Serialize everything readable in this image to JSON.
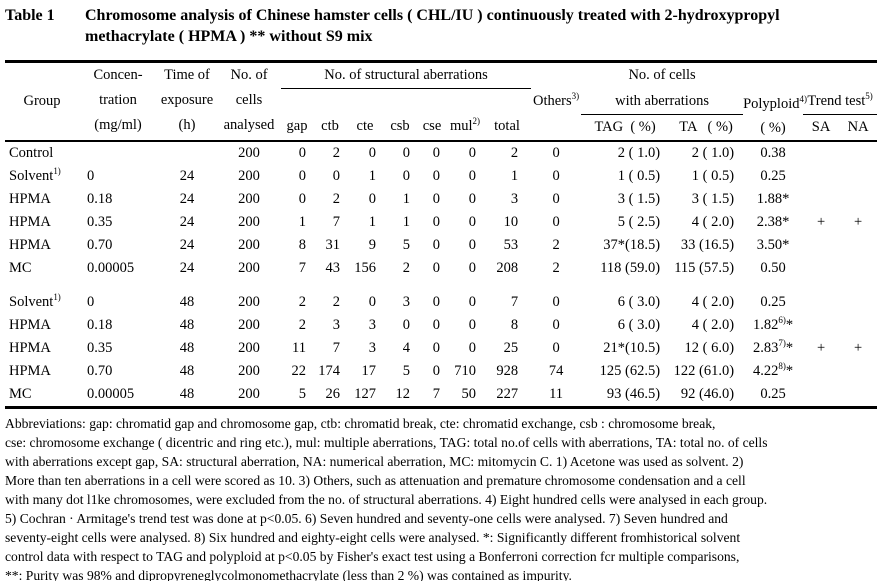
{
  "title": {
    "label": "Table 1",
    "text": "Chromosome analysis of Chinese hamster cells ( CHL/IU ) continuously treated with 2-hydroxypropyl\nmethacrylate ( HPMA ) ** without S9 mix"
  },
  "table": {
    "header": {
      "group": "Group",
      "concentration": "Concen-\ntration\n(mg/ml)",
      "time": "Time of\nexposure\n(h)",
      "cells": "No. of\ncells\nanalysed",
      "structural": "No. of structural aberrations",
      "gap": "gap",
      "ctb": "ctb",
      "cte": "cte",
      "csb": "csb",
      "cse": "cse",
      "mul": "mul|2)",
      "total": "total",
      "others": "Others|3)",
      "cells_with_aberrations_1": "No. of cells",
      "cells_with_aberrations_2": "with aberrations",
      "tag": "TAG  ( %)",
      "ta": "TA   ( %)",
      "polyploid": "Polyploid|4)|\n( %)",
      "trend": "Trend test|5)",
      "sa": "SA",
      "na": "NA"
    },
    "blocks": [
      {
        "rows": [
          {
            "group": "Control",
            "conc": "",
            "time": "",
            "cells": "200",
            "gap": "0",
            "ctb": "2",
            "cte": "0",
            "csb": "0",
            "cse": "0",
            "mul": "0",
            "total": "2",
            "others": "0",
            "tag": "2 ( 1.0)",
            "ta": "2 ( 1.0)",
            "poly": "0.38",
            "sa": "",
            "na": ""
          },
          {
            "group": "Solvent|1)",
            "conc": "0",
            "time": "24",
            "cells": "200",
            "gap": "0",
            "ctb": "0",
            "cte": "1",
            "csb": "0",
            "cse": "0",
            "mul": "0",
            "total": "1",
            "others": "0",
            "tag": "1 ( 0.5)",
            "ta": "1 ( 0.5)",
            "poly": "0.25",
            "sa": "",
            "na": ""
          },
          {
            "group": "HPMA",
            "conc": "0.18",
            "time": "24",
            "cells": "200",
            "gap": "0",
            "ctb": "2",
            "cte": "0",
            "csb": "1",
            "cse": "0",
            "mul": "0",
            "total": "3",
            "others": "0",
            "tag": "3 ( 1.5)",
            "ta": "3 ( 1.5)",
            "poly": "1.88*",
            "sa": "",
            "na": ""
          },
          {
            "group": "HPMA",
            "conc": "0.35",
            "time": "24",
            "cells": "200",
            "gap": "1",
            "ctb": "7",
            "cte": "1",
            "csb": "1",
            "cse": "0",
            "mul": "0",
            "total": "10",
            "others": "0",
            "tag": "5 ( 2.5)",
            "ta": "4 ( 2.0)",
            "poly": "2.38*",
            "sa": "+",
            "na": "+"
          },
          {
            "group": "HPMA",
            "conc": "0.70",
            "time": "24",
            "cells": "200",
            "gap": "8",
            "ctb": "31",
            "cte": "9",
            "csb": "5",
            "cse": "0",
            "mul": "0",
            "total": "53",
            "others": "2",
            "tag": "37*(18.5)",
            "ta": "33 (16.5)",
            "poly": "3.50*",
            "sa": "",
            "na": ""
          },
          {
            "group": "MC",
            "conc": "0.00005",
            "time": "24",
            "cells": "200",
            "gap": "7",
            "ctb": "43",
            "cte": "156",
            "csb": "2",
            "cse": "0",
            "mul": "0",
            "total": "208",
            "others": "2",
            "tag": "118 (59.0)",
            "ta": "115 (57.5)",
            "poly": "0.50",
            "sa": "",
            "na": ""
          }
        ]
      },
      {
        "rows": [
          {
            "group": "Solvent|1)",
            "conc": "0",
            "time": "48",
            "cells": "200",
            "gap": "2",
            "ctb": "2",
            "cte": "0",
            "csb": "3",
            "cse": "0",
            "mul": "0",
            "total": "7",
            "others": "0",
            "tag": "6 ( 3.0)",
            "ta": "4 ( 2.0)",
            "poly": "0.25",
            "sa": "",
            "na": ""
          },
          {
            "group": "HPMA",
            "conc": "0.18",
            "time": "48",
            "cells": "200",
            "gap": "2",
            "ctb": "3",
            "cte": "3",
            "csb": "0",
            "cse": "0",
            "mul": "0",
            "total": "8",
            "others": "0",
            "tag": "6 ( 3.0)",
            "ta": "4 ( 2.0)",
            "poly": "1.82|6)|*",
            "sa": "",
            "na": ""
          },
          {
            "group": "HPMA",
            "conc": "0.35",
            "time": "48",
            "cells": "200",
            "gap": "11",
            "ctb": "7",
            "cte": "3",
            "csb": "4",
            "cse": "0",
            "mul": "0",
            "total": "25",
            "others": "0",
            "tag": "21*(10.5)",
            "ta": "12 ( 6.0)",
            "poly": "2.83|7)|*",
            "sa": "+",
            "na": "+"
          },
          {
            "group": "HPMA",
            "conc": "0.70",
            "time": "48",
            "cells": "200",
            "gap": "22",
            "ctb": "174",
            "cte": "17",
            "csb": "5",
            "cse": "0",
            "mul": "710",
            "total": "928",
            "others": "74",
            "tag": "125 (62.5)",
            "ta": "122 (61.0)",
            "poly": "4.22|8)|*",
            "sa": "",
            "na": ""
          },
          {
            "group": "MC",
            "conc": "0.00005",
            "time": "48",
            "cells": "200",
            "gap": "5",
            "ctb": "26",
            "cte": "127",
            "csb": "12",
            "cse": "7",
            "mul": "50",
            "total": "227",
            "others": "11",
            "tag": "93 (46.5)",
            "ta": "92 (46.0)",
            "poly": "0.25",
            "sa": "",
            "na": ""
          }
        ]
      }
    ]
  },
  "footnotes": [
    "Abbreviations: gap: chromatid gap and chromosome gap, ctb: chromatid break, cte: chromatid exchange, csb :  chromosome break,",
    "cse: chromosome exchange ( dicentric and ring etc.), mul: multiple aberrations, TAG: total no.of cells with aberrations, TA: total no. of cells",
    "with aberrations except gap, SA: structural aberration, NA: numerical aberration, MC: mitomycin C.   1) Acetone was used as solvent.   2)",
    "More than ten aberrations in a cell were scored as 10.   3) Others, such as attenuation and premature chromosome condensation and a cell",
    "with many dot l1ke chromosomes, were excluded from the no. of structural aberrations.   4) Eight hundred cells were analysed in each group.",
    "5) Cochran · Armitage's trend test was done at p<0.05.   6) Seven hundred and seventy-one cells were analysed.   7) Seven hundred and",
    "seventy-eight cells were analysed.   8) Six hundred and eighty-eight cells were analysed.   *: Significantly different fromhistorical solvent",
    "control data with respect to TAG and polyploid at p<0.05 by Fisher's exact test using a Bonferroni correction fcr multiple comparisons,",
    "**: Purity was 98% and dipropyreneglycolmonomethacrylate (less than 2 %) was contained as impurity."
  ]
}
